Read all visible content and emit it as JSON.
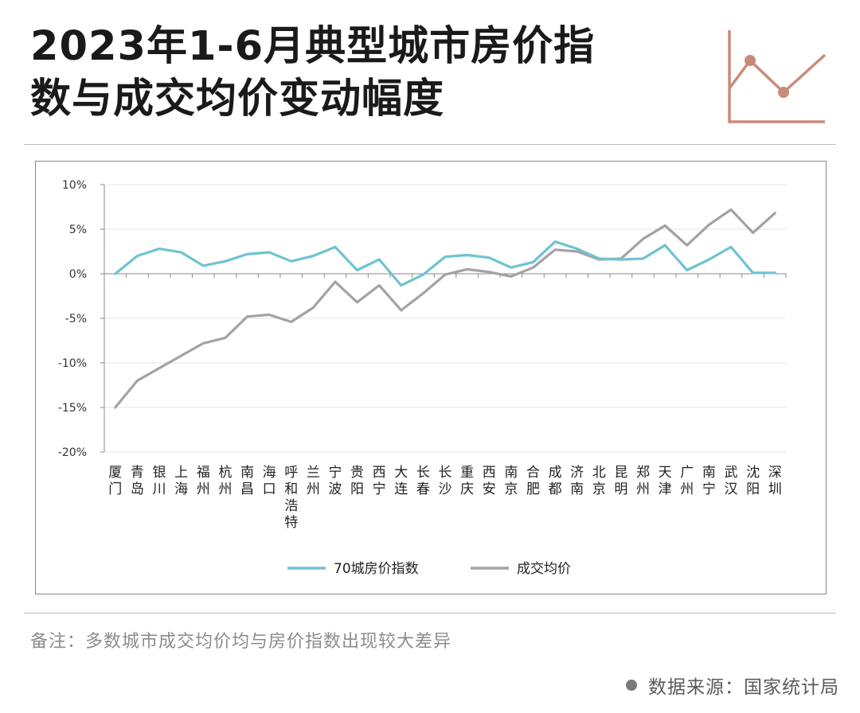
{
  "header": {
    "title_line1": "2023年1-6月典型城市房价指",
    "title_line2": "数与成交均价变动幅度",
    "icon": "line-chart-icon",
    "accent_color": "#c98b78"
  },
  "chart_data": {
    "type": "line",
    "categories": [
      "厦门",
      "青岛",
      "银川",
      "上海",
      "福州",
      "杭州",
      "南昌",
      "海口",
      "呼和浩特",
      "兰州",
      "宁波",
      "贵阳",
      "西宁",
      "大连",
      "长春",
      "长沙",
      "重庆",
      "西安",
      "南京",
      "合肥",
      "成都",
      "济南",
      "北京",
      "昆明",
      "郑州",
      "天津",
      "广州",
      "南宁",
      "武汉",
      "沈阳",
      "深圳"
    ],
    "series": [
      {
        "name": "70城房价指数",
        "color": "#6fc3d1",
        "values": [
          0.0,
          2.0,
          2.8,
          2.4,
          0.9,
          1.4,
          2.2,
          2.4,
          1.4,
          2.0,
          3.0,
          0.4,
          1.6,
          -1.3,
          -0.1,
          1.9,
          2.1,
          1.8,
          0.7,
          1.3,
          3.6,
          2.8,
          1.7,
          1.6,
          1.7,
          3.2,
          0.4,
          1.6,
          3.0,
          0.1,
          0.1
        ]
      },
      {
        "name": "成交均价",
        "color": "#a3a3a3",
        "values": [
          -15.0,
          -12.0,
          -10.6,
          -9.2,
          -7.8,
          -7.2,
          -4.8,
          -4.6,
          -5.4,
          -3.8,
          -0.9,
          -3.2,
          -1.3,
          -4.1,
          -2.2,
          -0.1,
          0.5,
          0.2,
          -0.3,
          0.7,
          2.7,
          2.5,
          1.6,
          1.7,
          3.9,
          5.4,
          3.2,
          5.5,
          7.2,
          4.6,
          6.8
        ]
      }
    ],
    "yticks": [
      "10%",
      "5%",
      "0%",
      "-5%",
      "-10%",
      "-15%",
      "-20%"
    ],
    "ylim": [
      -20,
      10
    ],
    "legend_position": "bottom",
    "grid": true
  },
  "footer": {
    "note": "备注：多数城市成交均价均与房价指数出现较大差异",
    "source": "数据来源：国家统计局"
  }
}
